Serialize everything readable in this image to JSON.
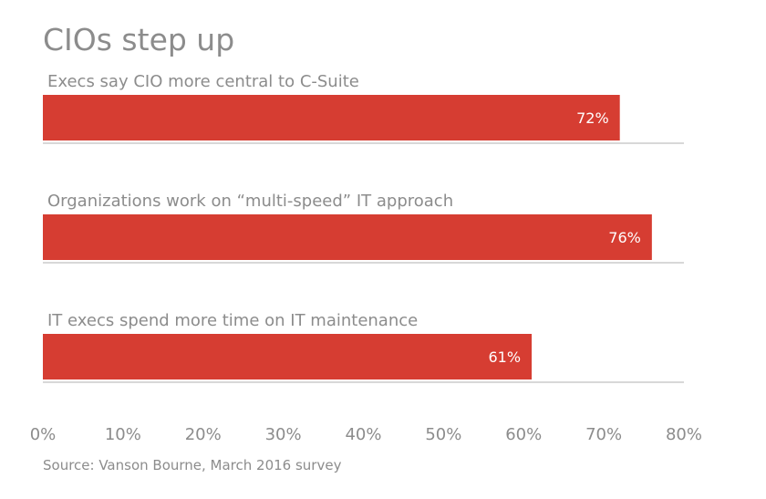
{
  "chart_data": {
    "type": "bar",
    "orientation": "horizontal",
    "title": "CIOs step up",
    "categories": [
      "Execs say CIO more central to C-Suite",
      "Organizations work on “multi-speed” IT approach",
      "IT execs spend more time on IT maintenance"
    ],
    "values": [
      72,
      76,
      61
    ],
    "value_labels": [
      "72%",
      "76%",
      "61%"
    ],
    "xlim": [
      0,
      80
    ],
    "xticks": [
      0,
      10,
      20,
      30,
      40,
      50,
      60,
      70,
      80
    ],
    "xtick_labels": [
      "0%",
      "10%",
      "20%",
      "30%",
      "40%",
      "50%",
      "60%",
      "70%",
      "80%"
    ],
    "grid": false,
    "legend": "none",
    "source": "Source: Vanson Bourne, March 2016 survey"
  },
  "colors": {
    "bar": "#d63d32",
    "text": "#8c8c8c",
    "baseline": "#cccccc",
    "bar_text": "#ffffff"
  }
}
